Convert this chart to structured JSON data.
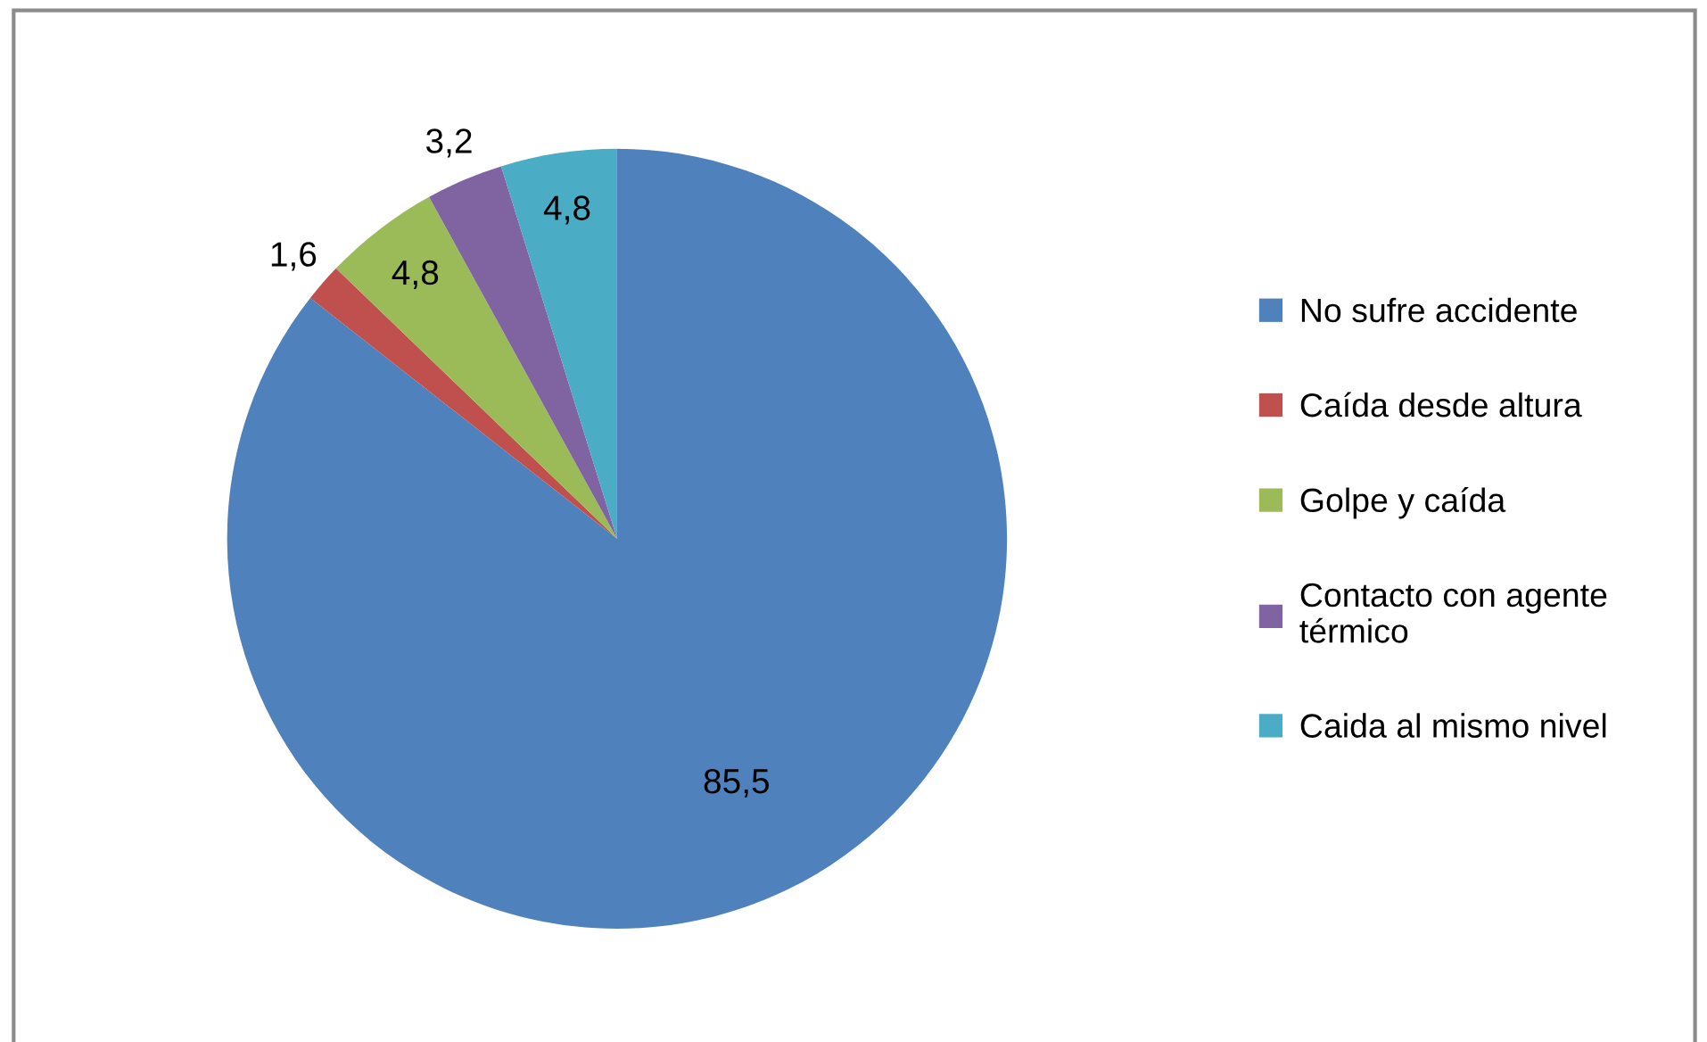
{
  "chart_data": {
    "type": "pie",
    "categories": [
      "No sufre accidente",
      "Caída desde altura",
      "Golpe y caída",
      "Contacto con agente térmico",
      "Caida al mismo nivel"
    ],
    "values": [
      85.5,
      1.6,
      4.8,
      3.2,
      4.8
    ],
    "value_labels": [
      "85,5",
      "1,6",
      "4,8",
      "3,2",
      "4,8"
    ],
    "colors": [
      "#4f81bd",
      "#c0504d",
      "#9bbb59",
      "#8064a2",
      "#4bacc6"
    ],
    "legend": "right"
  }
}
